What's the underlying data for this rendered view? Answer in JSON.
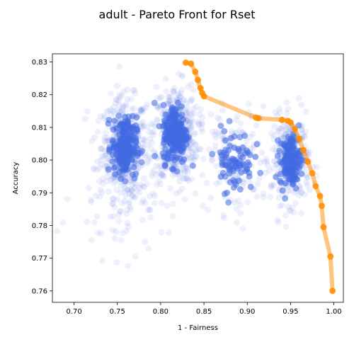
{
  "chart_data": {
    "type": "scatter",
    "title": "adult - Pareto Front for Rset",
    "xlabel": "1 - Fairness",
    "ylabel": "Accuracy",
    "xlim": [
      0.675,
      1.011
    ],
    "ylim": [
      0.7565,
      0.8325
    ],
    "xticks": [
      "0.70",
      "0.75",
      "0.80",
      "0.85",
      "0.90",
      "0.95",
      "1.00"
    ],
    "yticks": [
      "0.76",
      "0.77",
      "0.78",
      "0.79",
      "0.80",
      "0.81",
      "0.82",
      "0.83"
    ],
    "grid": false,
    "colors": {
      "rset": "#4169e1",
      "front": "#ff8c00"
    },
    "series": [
      {
        "role": "rset-points",
        "clusters": [
          {
            "center": [
              0.758,
              0.804
            ],
            "spread": [
              0.013,
              0.0075
            ],
            "count": 420
          },
          {
            "center": [
              0.817,
              0.808
            ],
            "spread": [
              0.013,
              0.0075
            ],
            "count": 420
          },
          {
            "center": [
              0.885,
              0.8
            ],
            "spread": [
              0.02,
              0.008
            ],
            "count": 160
          },
          {
            "center": [
              0.95,
              0.8
            ],
            "spread": [
              0.011,
              0.0065
            ],
            "count": 300
          },
          {
            "center": [
              0.76,
              0.79
            ],
            "spread": [
              0.03,
              0.01
            ],
            "count": 120
          }
        ]
      },
      {
        "role": "pareto-front",
        "points": [
          [
            0.829,
            0.8298
          ],
          [
            0.835,
            0.8295
          ],
          [
            0.84,
            0.827
          ],
          [
            0.843,
            0.8245
          ],
          [
            0.846,
            0.822
          ],
          [
            0.848,
            0.8205
          ],
          [
            0.85,
            0.8195
          ],
          [
            0.91,
            0.813
          ],
          [
            0.913,
            0.8128
          ],
          [
            0.94,
            0.8123
          ],
          [
            0.947,
            0.812
          ],
          [
            0.95,
            0.8115
          ],
          [
            0.955,
            0.8095
          ],
          [
            0.96,
            0.8065
          ],
          [
            0.965,
            0.803
          ],
          [
            0.97,
            0.7995
          ],
          [
            0.975,
            0.796
          ],
          [
            0.979,
            0.792
          ],
          [
            0.984,
            0.789
          ],
          [
            0.986,
            0.786
          ],
          [
            0.988,
            0.7795
          ],
          [
            0.996,
            0.7705
          ],
          [
            0.9985,
            0.76
          ]
        ]
      }
    ]
  }
}
